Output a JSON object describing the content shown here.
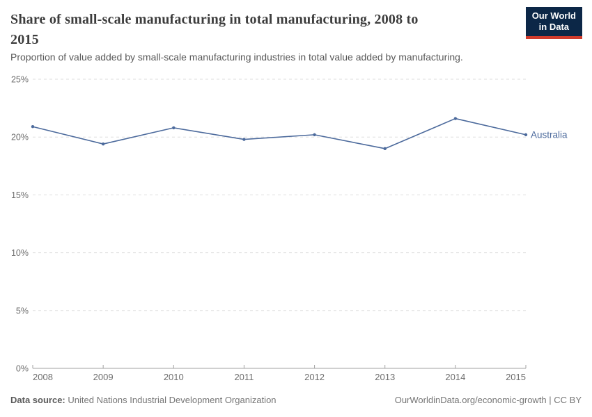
{
  "header": {
    "title_line1": "Share of small-scale manufacturing in total manufacturing, 2008 to",
    "title_line2": "2015",
    "subtitle": "Proportion of value added by small-scale manufacturing industries in total value added by manufacturing."
  },
  "logo": {
    "line1": "Our World",
    "line2": "in Data",
    "bg_color": "#0c2747",
    "bar_color": "#d13b2c"
  },
  "footer": {
    "datasource_label": "Data source:",
    "datasource_value": "United Nations Industrial Development Organization",
    "link": "OurWorldinData.org/economic-growth | CC BY"
  },
  "chart_data": {
    "type": "line",
    "title": "Share of small-scale manufacturing in total manufacturing, 2008 to 2015",
    "subtitle": "Proportion of value added by small-scale manufacturing industries in total value added by manufacturing.",
    "categories": [
      "2008",
      "2009",
      "2010",
      "2011",
      "2012",
      "2013",
      "2014",
      "2015"
    ],
    "series": [
      {
        "name": "Australia",
        "values": [
          20.9,
          19.4,
          20.8,
          19.8,
          20.2,
          19.0,
          21.6,
          20.2
        ],
        "color": "#4c6a9c"
      }
    ],
    "unit": "%",
    "ylim": [
      0,
      25
    ],
    "y_ticks": [
      0,
      5,
      10,
      15,
      20,
      25
    ],
    "y_tick_labels": [
      "0%",
      "5%",
      "10%",
      "15%",
      "20%",
      "25%"
    ],
    "grid": "dashed-horizontal",
    "legend_position": "end-of-line",
    "colors": {
      "gridline": "#dedede",
      "axis": "#a1a1a1",
      "tick_text": "#6e6e6e"
    }
  }
}
